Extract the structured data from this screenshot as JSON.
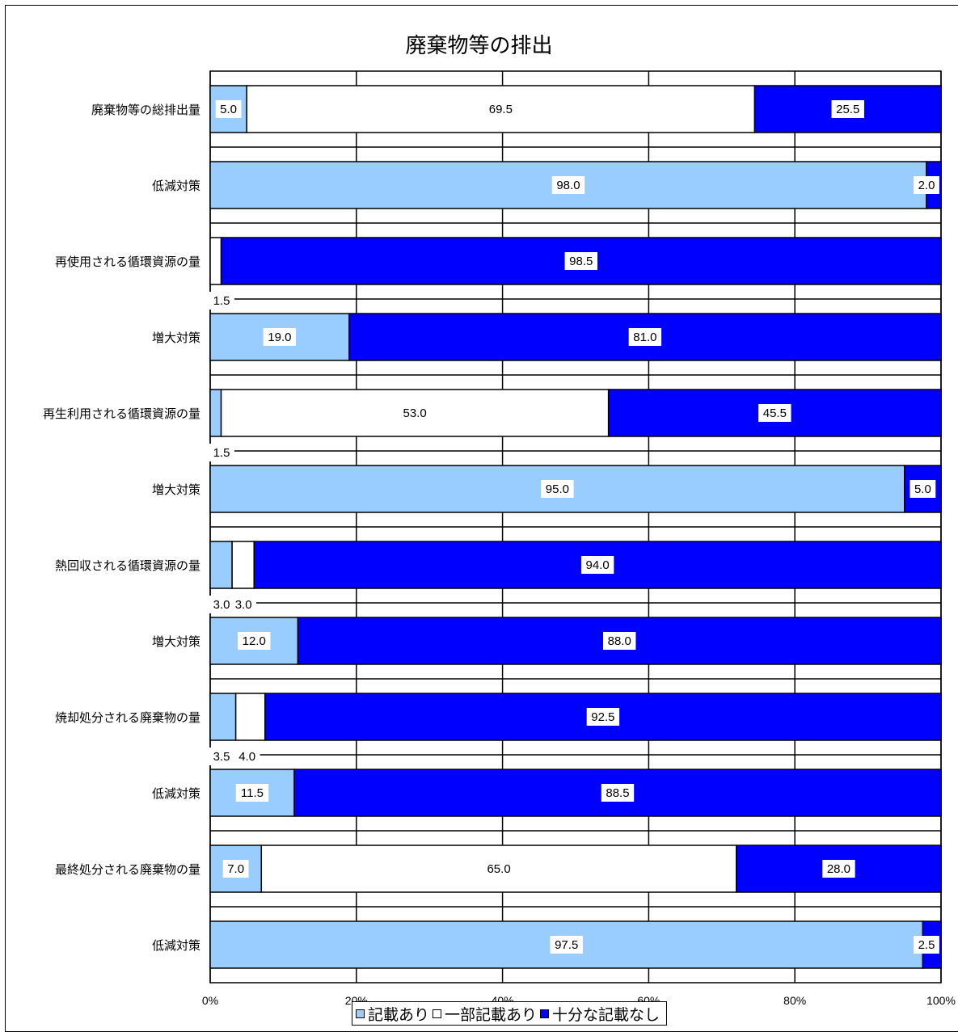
{
  "chart_data": {
    "type": "bar",
    "orientation": "horizontal",
    "stacked": "percent",
    "title": "廃棄物等の排出",
    "categories": [
      "廃棄物等の総排出量",
      "低減対策",
      "再使用される循環資源の量",
      "増大対策",
      "再生利用される循環資源の量",
      "増大対策",
      "熱回収される循環資源の量",
      "増大対策",
      "焼却処分される廃棄物の量",
      "低減対策",
      "最終処分される廃棄物の量",
      "低減対策"
    ],
    "series": [
      {
        "name": "記載あり",
        "color": "#99ccff",
        "values": [
          5.0,
          98.0,
          0,
          19.0,
          1.5,
          95.0,
          3.0,
          12.0,
          3.5,
          11.5,
          7.0,
          97.5
        ]
      },
      {
        "name": "一部記載あり",
        "color": "#ffffff",
        "values": [
          69.5,
          0,
          1.5,
          0,
          53.0,
          0,
          3.0,
          0,
          4.0,
          0,
          65.0,
          0
        ]
      },
      {
        "name": "十分な記載なし",
        "color": "#0000ff",
        "values": [
          25.5,
          2.0,
          98.5,
          81.0,
          45.5,
          5.0,
          94.0,
          88.0,
          92.5,
          88.5,
          28.0,
          2.5
        ]
      }
    ],
    "data_labels": [
      [
        "5.0",
        "69.5",
        "25.5"
      ],
      [
        "98.0",
        "",
        "2.0"
      ],
      [
        "",
        "1.5",
        "98.5"
      ],
      [
        "19.0",
        "",
        "81.0"
      ],
      [
        "1.5",
        "53.0",
        "45.5"
      ],
      [
        "95.0",
        "",
        "5.0"
      ],
      [
        "3.0",
        "3.0",
        "94.0"
      ],
      [
        "12.0",
        "",
        "88.0"
      ],
      [
        "3.5",
        "4.0",
        "92.5"
      ],
      [
        "11.5",
        "",
        "88.5"
      ],
      [
        "7.0",
        "65.0",
        "28.0"
      ],
      [
        "97.5",
        "",
        "2.5"
      ]
    ],
    "xlim": [
      0,
      100
    ],
    "x_ticks": [
      "0%",
      "20%",
      "40%",
      "60%",
      "80%",
      "100%"
    ],
    "grid": true,
    "legend_position": "bottom"
  }
}
